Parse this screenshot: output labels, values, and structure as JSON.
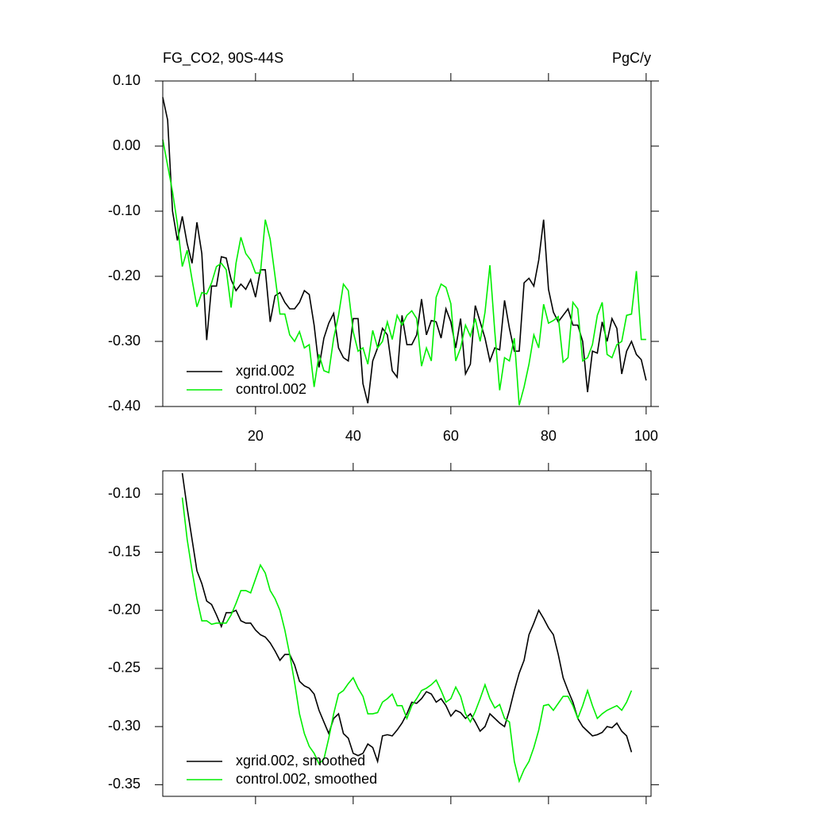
{
  "chart_data": [
    {
      "type": "line",
      "title": "FG_CO2, 90S-44S",
      "right_title": "PgC/y",
      "x": [
        1,
        2,
        3,
        4,
        5,
        6,
        7,
        8,
        9,
        10,
        11,
        12,
        13,
        14,
        15,
        16,
        17,
        18,
        19,
        20,
        21,
        22,
        23,
        24,
        25,
        26,
        27,
        28,
        29,
        30,
        31,
        32,
        33,
        34,
        35,
        36,
        37,
        38,
        39,
        40,
        41,
        42,
        43,
        44,
        45,
        46,
        47,
        48,
        49,
        50,
        51,
        52,
        53,
        54,
        55,
        56,
        57,
        58,
        59,
        60,
        61,
        62,
        63,
        64,
        65,
        66,
        67,
        68,
        69,
        70,
        71,
        72,
        73,
        74,
        75,
        76,
        77,
        78,
        79,
        80,
        81,
        82,
        83,
        84,
        85,
        86,
        87,
        88,
        89,
        90,
        91,
        92,
        93,
        94,
        95,
        96,
        97,
        98,
        99,
        100
      ],
      "xlim": [
        1,
        101
      ],
      "xticks": [
        20,
        40,
        60,
        80,
        100
      ],
      "ylim": [
        -0.4,
        0.1
      ],
      "yticks": [
        {
          "value": 0.1,
          "label": "0.10"
        },
        {
          "value": 0,
          "label": "0.00"
        },
        {
          "value": -0.1,
          "label": "-0.10"
        },
        {
          "value": -0.2,
          "label": "-0.20"
        },
        {
          "value": -0.3,
          "label": "-0.30"
        },
        {
          "value": -0.4,
          "label": "-0.40"
        }
      ],
      "legend": "lower left",
      "series": [
        {
          "name": "xgrid.002",
          "color": "#000000",
          "values": [
            0.075,
            0.04,
            -0.1,
            -0.145,
            -0.108,
            -0.15,
            -0.18,
            -0.117,
            -0.165,
            -0.298,
            -0.215,
            -0.215,
            -0.17,
            -0.172,
            -0.205,
            -0.222,
            -0.212,
            -0.22,
            -0.205,
            -0.232,
            -0.19,
            -0.19,
            -0.27,
            -0.23,
            -0.225,
            -0.24,
            -0.25,
            -0.25,
            -0.24,
            -0.222,
            -0.228,
            -0.275,
            -0.34,
            -0.295,
            -0.272,
            -0.257,
            -0.31,
            -0.325,
            -0.33,
            -0.265,
            -0.265,
            -0.365,
            -0.395,
            -0.33,
            -0.31,
            -0.28,
            -0.29,
            -0.345,
            -0.355,
            -0.26,
            -0.305,
            -0.305,
            -0.29,
            -0.235,
            -0.29,
            -0.268,
            -0.27,
            -0.295,
            -0.25,
            -0.27,
            -0.31,
            -0.265,
            -0.35,
            -0.335,
            -0.245,
            -0.27,
            -0.295,
            -0.33,
            -0.31,
            -0.313,
            -0.237,
            -0.28,
            -0.315,
            -0.315,
            -0.21,
            -0.203,
            -0.215,
            -0.175,
            -0.113,
            -0.22,
            -0.255,
            -0.27,
            -0.26,
            -0.25,
            -0.275,
            -0.275,
            -0.3,
            -0.378,
            -0.315,
            -0.318,
            -0.27,
            -0.3,
            -0.265,
            -0.28,
            -0.35,
            -0.315,
            -0.3,
            -0.32,
            -0.328,
            -0.36
          ]
        },
        {
          "name": "control.002",
          "color": "#00ee00",
          "values": [
            0.01,
            -0.03,
            -0.07,
            -0.12,
            -0.185,
            -0.16,
            -0.205,
            -0.247,
            -0.225,
            -0.227,
            -0.21,
            -0.185,
            -0.18,
            -0.19,
            -0.248,
            -0.18,
            -0.14,
            -0.165,
            -0.175,
            -0.195,
            -0.195,
            -0.113,
            -0.143,
            -0.2,
            -0.258,
            -0.258,
            -0.29,
            -0.3,
            -0.285,
            -0.31,
            -0.305,
            -0.37,
            -0.32,
            -0.345,
            -0.348,
            -0.295,
            -0.26,
            -0.212,
            -0.222,
            -0.285,
            -0.315,
            -0.31,
            -0.335,
            -0.283,
            -0.31,
            -0.3,
            -0.27,
            -0.297,
            -0.26,
            -0.275,
            -0.26,
            -0.253,
            -0.265,
            -0.338,
            -0.31,
            -0.33,
            -0.232,
            -0.212,
            -0.217,
            -0.242,
            -0.33,
            -0.31,
            -0.275,
            -0.292,
            -0.265,
            -0.3,
            -0.255,
            -0.183,
            -0.285,
            -0.375,
            -0.325,
            -0.33,
            -0.295,
            -0.398,
            -0.37,
            -0.335,
            -0.29,
            -0.31,
            -0.243,
            -0.272,
            -0.268,
            -0.262,
            -0.332,
            -0.325,
            -0.24,
            -0.25,
            -0.33,
            -0.325,
            -0.305,
            -0.26,
            -0.24,
            -0.32,
            -0.325,
            -0.305,
            -0.3,
            -0.26,
            -0.258,
            -0.192,
            -0.297,
            -0.297
          ]
        }
      ]
    },
    {
      "type": "line",
      "x": [
        5,
        6,
        7,
        8,
        9,
        10,
        11,
        12,
        13,
        14,
        15,
        16,
        17,
        18,
        19,
        20,
        21,
        22,
        23,
        24,
        25,
        26,
        27,
        28,
        29,
        30,
        31,
        32,
        33,
        34,
        35,
        36,
        37,
        38,
        39,
        40,
        41,
        42,
        43,
        44,
        45,
        46,
        47,
        48,
        49,
        50,
        51,
        52,
        53,
        54,
        55,
        56,
        57,
        58,
        59,
        60,
        61,
        62,
        63,
        64,
        65,
        66,
        67,
        68,
        69,
        70,
        71,
        72,
        73,
        74,
        75,
        76,
        77,
        78,
        79,
        80,
        81,
        82,
        83,
        84,
        85,
        86,
        87,
        88,
        89,
        90,
        91,
        92,
        93,
        94,
        95,
        96,
        97
      ],
      "xlim": [
        1,
        101
      ],
      "xticks": [
        20,
        40,
        60,
        80,
        100
      ],
      "xtick_labels": false,
      "ylim": [
        -0.36,
        -0.08
      ],
      "yticks": [
        {
          "value": -0.1,
          "label": "-0.10"
        },
        {
          "value": -0.15,
          "label": "-0.15"
        },
        {
          "value": -0.2,
          "label": "-0.20"
        },
        {
          "value": -0.25,
          "label": "-0.25"
        },
        {
          "value": -0.3,
          "label": "-0.30"
        },
        {
          "value": -0.35,
          "label": "-0.35"
        }
      ],
      "legend": "lower left",
      "series": [
        {
          "name": "xgrid.002, smoothed",
          "color": "#000000",
          "values": [
            -0.082,
            -0.112,
            -0.139,
            -0.166,
            -0.177,
            -0.192,
            -0.195,
            -0.204,
            -0.214,
            -0.202,
            -0.202,
            -0.2,
            -0.209,
            -0.211,
            -0.211,
            -0.217,
            -0.221,
            -0.223,
            -0.228,
            -0.235,
            -0.243,
            -0.238,
            -0.238,
            -0.247,
            -0.261,
            -0.265,
            -0.267,
            -0.272,
            -0.286,
            -0.296,
            -0.306,
            -0.293,
            -0.289,
            -0.306,
            -0.31,
            -0.323,
            -0.325,
            -0.323,
            -0.315,
            -0.318,
            -0.33,
            -0.308,
            -0.307,
            -0.308,
            -0.303,
            -0.297,
            -0.289,
            -0.279,
            -0.28,
            -0.276,
            -0.27,
            -0.272,
            -0.279,
            -0.276,
            -0.282,
            -0.291,
            -0.286,
            -0.288,
            -0.293,
            -0.289,
            -0.296,
            -0.304,
            -0.3,
            -0.289,
            -0.293,
            -0.297,
            -0.3,
            -0.286,
            -0.269,
            -0.254,
            -0.243,
            -0.221,
            -0.211,
            -0.2,
            -0.207,
            -0.215,
            -0.221,
            -0.238,
            -0.258,
            -0.269,
            -0.279,
            -0.293,
            -0.3,
            -0.304,
            -0.308,
            -0.307,
            -0.305,
            -0.3,
            -0.301,
            -0.297,
            -0.304,
            -0.308,
            -0.322
          ]
        },
        {
          "name": "control.002, smoothed",
          "color": "#00ee00",
          "values": [
            -0.103,
            -0.139,
            -0.166,
            -0.19,
            -0.209,
            -0.209,
            -0.212,
            -0.211,
            -0.211,
            -0.211,
            -0.204,
            -0.194,
            -0.183,
            -0.183,
            -0.185,
            -0.173,
            -0.161,
            -0.168,
            -0.183,
            -0.19,
            -0.2,
            -0.217,
            -0.238,
            -0.262,
            -0.289,
            -0.306,
            -0.317,
            -0.323,
            -0.332,
            -0.328,
            -0.31,
            -0.289,
            -0.272,
            -0.269,
            -0.263,
            -0.258,
            -0.267,
            -0.274,
            -0.289,
            -0.289,
            -0.288,
            -0.279,
            -0.276,
            -0.272,
            -0.282,
            -0.282,
            -0.293,
            -0.282,
            -0.276,
            -0.269,
            -0.267,
            -0.264,
            -0.26,
            -0.269,
            -0.279,
            -0.276,
            -0.266,
            -0.274,
            -0.289,
            -0.296,
            -0.287,
            -0.276,
            -0.264,
            -0.276,
            -0.284,
            -0.281,
            -0.293,
            -0.296,
            -0.33,
            -0.347,
            -0.337,
            -0.33,
            -0.318,
            -0.303,
            -0.282,
            -0.281,
            -0.286,
            -0.28,
            -0.274,
            -0.274,
            -0.282,
            -0.293,
            -0.282,
            -0.269,
            -0.282,
            -0.293,
            -0.289,
            -0.286,
            -0.284,
            -0.282,
            -0.286,
            -0.279,
            -0.269
          ]
        }
      ]
    }
  ]
}
